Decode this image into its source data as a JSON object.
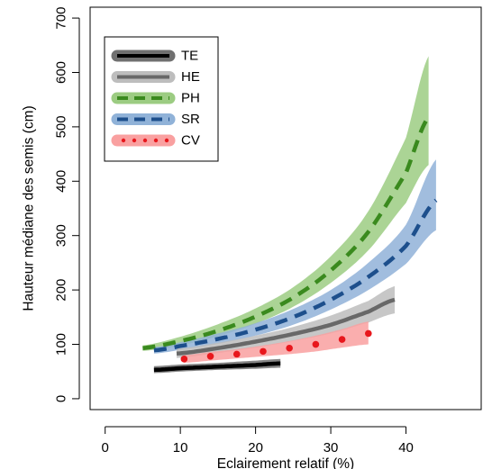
{
  "chart_data": {
    "type": "line",
    "xlabel": "Eclairement relatif (%)",
    "ylabel": "Hauteur médiane des semis (cm)",
    "xlim": [
      -2,
      50
    ],
    "ylim": [
      -20,
      720
    ],
    "x_ticks": [
      0,
      10,
      20,
      30,
      40
    ],
    "x_tick_labels": [
      "0",
      "10",
      "20",
      "30",
      "40"
    ],
    "y_ticks": [
      0,
      100,
      200,
      300,
      400,
      500,
      600,
      700
    ],
    "y_tick_labels": [
      "0",
      "100",
      "200",
      "300",
      "400",
      "500",
      "600",
      "700"
    ],
    "legend_position": "top-left",
    "grid": false,
    "series": [
      {
        "name": "TE",
        "line_color": "#000000",
        "band_color": "#707070",
        "line_style": "solid",
        "x": [
          6.5,
          10,
          15,
          20,
          23.3
        ],
        "y": [
          53,
          56,
          59,
          62,
          65
        ],
        "lower": [
          47,
          50,
          53,
          55,
          57
        ],
        "upper": [
          60,
          63,
          66,
          70,
          73
        ]
      },
      {
        "name": "HE",
        "line_color": "#686868",
        "band_color": "#bdbdbd",
        "line_style": "solid",
        "x": [
          9.5,
          15,
          20,
          25,
          30,
          35,
          38.5
        ],
        "y": [
          83,
          93,
          105,
          119,
          136,
          160,
          182
        ],
        "lower": [
          75,
          84,
          94,
          106,
          120,
          140,
          157
        ],
        "upper": [
          92,
          103,
          116,
          132,
          153,
          180,
          207
        ]
      },
      {
        "name": "PH",
        "line_color": "#3a8a1e",
        "band_color": "#9ccc82",
        "line_style": "dashed",
        "x": [
          5,
          10,
          15,
          20,
          25,
          30,
          35,
          40,
          43
        ],
        "y": [
          93,
          106,
          125,
          151,
          186,
          236,
          307,
          415,
          518
        ],
        "lower": [
          88,
          98,
          115,
          138,
          169,
          213,
          273,
          360,
          430
        ],
        "upper": [
          98,
          114,
          137,
          166,
          205,
          262,
          345,
          480,
          630
        ]
      },
      {
        "name": "SR",
        "line_color": "#1d4f8c",
        "band_color": "#90b2d8",
        "line_style": "dashed",
        "x": [
          6.5,
          10,
          15,
          20,
          25,
          30,
          35,
          40,
          44
        ],
        "y": [
          89,
          97,
          110,
          127,
          150,
          182,
          224,
          281,
          365
        ],
        "lower": [
          83,
          90,
          101,
          116,
          136,
          164,
          200,
          248,
          310
        ],
        "upper": [
          95,
          104,
          120,
          139,
          165,
          200,
          250,
          320,
          440
        ]
      },
      {
        "name": "CV",
        "line_color": "#e8171c",
        "band_color": "#f9a0a0",
        "line_style": "dotted",
        "x": [
          10.5,
          14,
          17.5,
          21,
          24.5,
          28,
          31.5,
          35
        ],
        "y": [
          73,
          78,
          82,
          87,
          93,
          100,
          109,
          120
        ],
        "lower": [
          66,
          70,
          74,
          78,
          82,
          87,
          94,
          100
        ],
        "upper": [
          80,
          86,
          91,
          98,
          106,
          116,
          128,
          142
        ]
      }
    ]
  }
}
